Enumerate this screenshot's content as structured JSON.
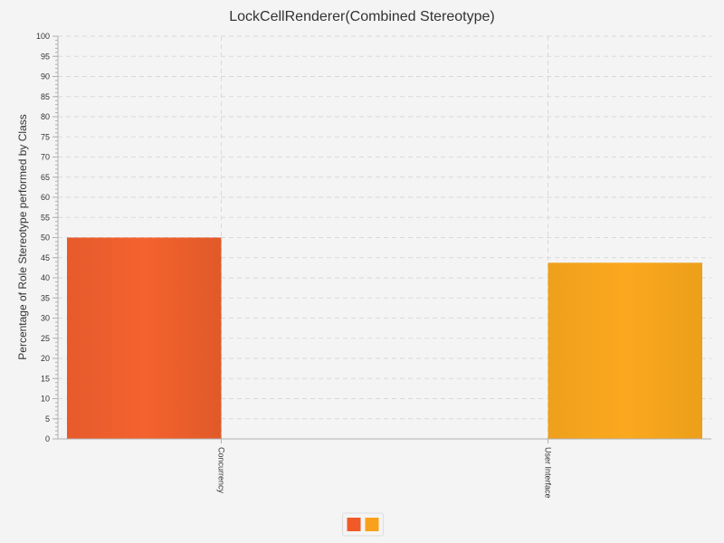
{
  "chart_data": {
    "type": "bar",
    "title": "LockCellRenderer(Combined Stereotype)",
    "xlabel": "",
    "ylabel": "Percentage of Role Stereotype performed by Class",
    "ylim": [
      0,
      100
    ],
    "ytick_step": 5,
    "categories": [
      "Concurrency",
      "User Interface"
    ],
    "series": [
      {
        "values": [
          50,
          0
        ],
        "color": "#f05a28"
      },
      {
        "values": [
          0,
          43.75
        ],
        "color": "#f9a11b"
      }
    ],
    "grid": true,
    "legend_position": "bottom-center"
  }
}
